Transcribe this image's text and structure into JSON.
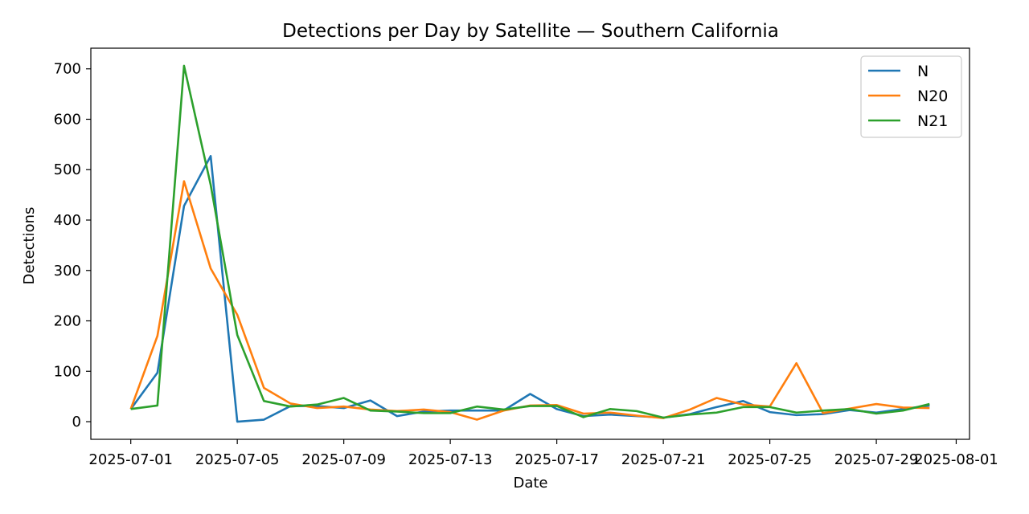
{
  "chart_data": {
    "type": "line",
    "title": "Detections per Day by Satellite — Southern California",
    "xlabel": "Date",
    "ylabel": "Detections",
    "x": [
      "2025-07-01",
      "2025-07-02",
      "2025-07-03",
      "2025-07-04",
      "2025-07-05",
      "2025-07-06",
      "2025-07-07",
      "2025-07-08",
      "2025-07-09",
      "2025-07-10",
      "2025-07-11",
      "2025-07-12",
      "2025-07-13",
      "2025-07-14",
      "2025-07-15",
      "2025-07-16",
      "2025-07-17",
      "2025-07-18",
      "2025-07-19",
      "2025-07-20",
      "2025-07-21",
      "2025-07-22",
      "2025-07-23",
      "2025-07-24",
      "2025-07-25",
      "2025-07-26",
      "2025-07-27",
      "2025-07-28",
      "2025-07-29",
      "2025-07-30",
      "2025-07-31"
    ],
    "series": [
      {
        "name": "N",
        "color": "#1f77b4",
        "values": [
          25,
          97,
          428,
          527,
          0,
          4,
          31,
          31,
          27,
          42,
          11,
          20,
          22,
          22,
          22,
          55,
          25,
          11,
          14,
          11,
          8,
          15,
          29,
          41,
          19,
          13,
          15,
          23,
          18,
          25,
          32
        ]
      },
      {
        "name": "N20",
        "color": "#ff7f0e",
        "values": [
          25,
          170,
          477,
          304,
          212,
          67,
          36,
          27,
          30,
          24,
          21,
          24,
          19,
          4,
          22,
          32,
          33,
          16,
          18,
          12,
          7,
          24,
          47,
          34,
          30,
          116,
          17,
          26,
          35,
          28,
          27
        ]
      },
      {
        "name": "N21",
        "color": "#2ca02c",
        "values": [
          25,
          32,
          706,
          470,
          172,
          41,
          30,
          34,
          47,
          22,
          20,
          17,
          17,
          30,
          24,
          31,
          31,
          9,
          25,
          21,
          8,
          14,
          18,
          29,
          29,
          18,
          22,
          25,
          16,
          22,
          35
        ]
      }
    ],
    "xlim": [
      "2025-06-29T12:00",
      "2025-08-01T12:00"
    ],
    "xticks": [
      "2025-07-01",
      "2025-07-05",
      "2025-07-09",
      "2025-07-13",
      "2025-07-17",
      "2025-07-21",
      "2025-07-25",
      "2025-07-29",
      "2025-08-01"
    ],
    "xtick_labels": [
      "2025-07-01",
      "2025-07-05",
      "2025-07-09",
      "2025-07-13",
      "2025-07-17",
      "2025-07-21",
      "2025-07-25",
      "2025-07-29",
      "2025-08-01"
    ],
    "ylim": [
      -35,
      741
    ],
    "yticks": [
      0,
      100,
      200,
      300,
      400,
      500,
      600,
      700
    ],
    "grid": false,
    "legend_position": "top-right"
  }
}
